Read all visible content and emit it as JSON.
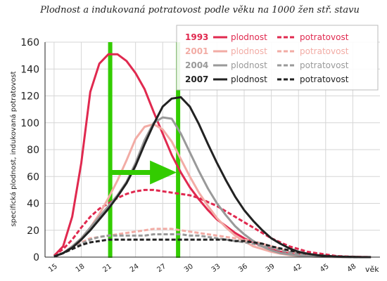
{
  "chart_data": {
    "type": "line",
    "title": "Plodnost a indukovaná potratovost podle věku na 1000 žen stř. stavu",
    "ylabel": "specifická plodnost, indukovaná potratovost",
    "xlabel": "věk",
    "xlim": [
      14,
      51
    ],
    "ylim": [
      0,
      160
    ],
    "xticks": [
      15,
      18,
      21,
      24,
      27,
      30,
      33,
      36,
      39,
      42,
      45,
      48
    ],
    "yticks": [
      0,
      20,
      40,
      60,
      80,
      100,
      120,
      140,
      160
    ],
    "grid": true,
    "legend_position": "top-right",
    "series": [
      {
        "name": "plodnost",
        "year": "1993",
        "kind": "plodnost",
        "color": "#e0294f",
        "dashed": false,
        "x": [
          15,
          16,
          17,
          18,
          19,
          20,
          21,
          22,
          23,
          24,
          25,
          26,
          27,
          28,
          29,
          30,
          31,
          32,
          33,
          34,
          35,
          36,
          37,
          38,
          39,
          40,
          41,
          42,
          43,
          44,
          45,
          46,
          47,
          48,
          49,
          50
        ],
        "y": [
          1,
          8,
          30,
          70,
          123,
          144,
          151,
          151,
          146,
          137,
          125,
          108,
          92,
          76,
          63,
          52,
          43,
          35,
          28,
          23,
          18,
          14,
          11,
          8,
          6,
          4,
          3,
          2,
          1.5,
          1,
          0.5,
          0.3,
          0.2,
          0.1,
          0.05,
          0
        ]
      },
      {
        "name": "potratovost",
        "year": "1993",
        "kind": "potratovost",
        "color": "#e0294f",
        "dashed": true,
        "x": [
          15,
          16,
          17,
          18,
          19,
          20,
          21,
          22,
          23,
          24,
          25,
          26,
          27,
          28,
          29,
          30,
          31,
          32,
          33,
          34,
          35,
          36,
          37,
          38,
          39,
          40,
          41,
          42,
          43,
          44,
          45,
          46,
          47,
          48,
          49,
          50
        ],
        "y": [
          1,
          6,
          13,
          22,
          30,
          36,
          40,
          44,
          47,
          49,
          50,
          50,
          49,
          48,
          47,
          46,
          44,
          41,
          38,
          34,
          30,
          26,
          22,
          18,
          14,
          11,
          8,
          6,
          4,
          3,
          2,
          1,
          0.5,
          0.3,
          0.1,
          0
        ]
      },
      {
        "name": "plodnost",
        "year": "2001",
        "kind": "plodnost",
        "color": "#f2aca5",
        "dashed": false,
        "x": [
          15,
          16,
          17,
          18,
          19,
          20,
          21,
          22,
          23,
          24,
          25,
          26,
          27,
          28,
          29,
          30,
          31,
          32,
          33,
          34,
          35,
          36,
          37,
          38,
          39,
          40,
          41,
          42,
          43,
          44,
          45,
          46,
          47,
          48,
          49,
          50
        ],
        "y": [
          0.5,
          3,
          8,
          14,
          22,
          32,
          44,
          57,
          72,
          88,
          97,
          99,
          95,
          86,
          73,
          60,
          48,
          38,
          29,
          22,
          16,
          12,
          8,
          6,
          4,
          2.5,
          1.5,
          1,
          0.6,
          0.3,
          0.2,
          0.1,
          0.05,
          0,
          0,
          0
        ]
      },
      {
        "name": "potratovost",
        "year": "2001",
        "kind": "potratovost",
        "color": "#f2aca5",
        "dashed": true,
        "x": [
          15,
          16,
          17,
          18,
          19,
          20,
          21,
          22,
          23,
          24,
          25,
          26,
          27,
          28,
          29,
          30,
          31,
          32,
          33,
          34,
          35,
          36,
          37,
          38,
          39,
          40,
          41,
          42,
          43,
          44,
          45,
          46,
          47,
          48,
          49,
          50
        ],
        "y": [
          0.5,
          3,
          7,
          11,
          14,
          15,
          16,
          17,
          18,
          19,
          20,
          21,
          21,
          21,
          20,
          19,
          18,
          17,
          16,
          15,
          14,
          13,
          12,
          10,
          8,
          6,
          4,
          3,
          2,
          1.2,
          0.7,
          0.4,
          0.2,
          0.1,
          0,
          0
        ]
      },
      {
        "name": "plodnost",
        "year": "2004",
        "kind": "plodnost",
        "color": "#999999",
        "dashed": false,
        "x": [
          15,
          16,
          17,
          18,
          19,
          20,
          21,
          22,
          23,
          24,
          25,
          26,
          27,
          28,
          29,
          30,
          31,
          32,
          33,
          34,
          35,
          36,
          37,
          38,
          39,
          40,
          41,
          42,
          43,
          44,
          45,
          46,
          47,
          48,
          49,
          50
        ],
        "y": [
          0.5,
          3,
          8,
          14,
          22,
          30,
          38,
          46,
          56,
          70,
          87,
          100,
          104,
          103,
          92,
          78,
          64,
          51,
          40,
          31,
          23,
          17,
          12,
          8,
          5,
          3,
          2,
          1.2,
          0.7,
          0.4,
          0.2,
          0.1,
          0.05,
          0,
          0,
          0
        ]
      },
      {
        "name": "potratovost",
        "year": "2004",
        "kind": "potratovost",
        "color": "#999999",
        "dashed": true,
        "x": [
          15,
          16,
          17,
          18,
          19,
          20,
          21,
          22,
          23,
          24,
          25,
          26,
          27,
          28,
          29,
          30,
          31,
          32,
          33,
          34,
          35,
          36,
          37,
          38,
          39,
          40,
          41,
          42,
          43,
          44,
          45,
          46,
          47,
          48,
          49,
          50
        ],
        "y": [
          0.3,
          3,
          6,
          10,
          13,
          15,
          16,
          16,
          16,
          16,
          16,
          17,
          17,
          17,
          17,
          16,
          16,
          15,
          14,
          13,
          12,
          11,
          10,
          8,
          7,
          5,
          3.5,
          2.5,
          1.5,
          1,
          0.6,
          0.3,
          0.2,
          0.1,
          0,
          0
        ]
      },
      {
        "name": "plodnost",
        "year": "2007",
        "kind": "plodnost",
        "color": "#222222",
        "dashed": false,
        "x": [
          15,
          16,
          17,
          18,
          19,
          20,
          21,
          22,
          23,
          24,
          25,
          26,
          27,
          28,
          29,
          30,
          31,
          32,
          33,
          34,
          35,
          36,
          37,
          38,
          39,
          40,
          41,
          42,
          43,
          44,
          45,
          46,
          47,
          48,
          49,
          50
        ],
        "y": [
          0.5,
          3,
          7,
          13,
          20,
          28,
          36,
          45,
          55,
          68,
          84,
          99,
          112,
          118,
          119,
          112,
          99,
          84,
          70,
          57,
          45,
          35,
          27,
          20,
          14,
          10,
          6.5,
          4,
          2.5,
          1.5,
          0.8,
          0.4,
          0.2,
          0.1,
          0,
          0
        ]
      },
      {
        "name": "potratovost",
        "year": "2007",
        "kind": "potratovost",
        "color": "#222222",
        "dashed": true,
        "x": [
          15,
          16,
          17,
          18,
          19,
          20,
          21,
          22,
          23,
          24,
          25,
          26,
          27,
          28,
          29,
          30,
          31,
          32,
          33,
          34,
          35,
          36,
          37,
          38,
          39,
          40,
          41,
          42,
          43,
          44,
          45,
          46,
          47,
          48,
          49,
          50
        ],
        "y": [
          0.3,
          3,
          6,
          9,
          11,
          12,
          13,
          13,
          13,
          13,
          13,
          13,
          13,
          13,
          13,
          13,
          13,
          13,
          13,
          13,
          12,
          12,
          11,
          10,
          8,
          6.5,
          5,
          3.5,
          2.5,
          1.5,
          1,
          0.5,
          0.3,
          0.1,
          0,
          0
        ]
      }
    ],
    "annotations": {
      "color": "#33cc00",
      "vertical_lines_x": [
        21.2,
        28.7
      ],
      "arrow": {
        "from_x": 21.2,
        "to_x": 28.7,
        "y": 63
      }
    }
  },
  "legend": {
    "rows": [
      {
        "year": "1993",
        "color": "#e0294f",
        "solid_label": "plodnost",
        "dashed_label": "potratovost"
      },
      {
        "year": "2001",
        "color": "#f2aca5",
        "solid_label": "plodnost",
        "dashed_label": "potratovost"
      },
      {
        "year": "2004",
        "color": "#999999",
        "solid_label": "plodnost",
        "dashed_label": "potratovost"
      },
      {
        "year": "2007",
        "color": "#222222",
        "solid_label": "plodnost",
        "dashed_label": "potratovost"
      }
    ]
  }
}
